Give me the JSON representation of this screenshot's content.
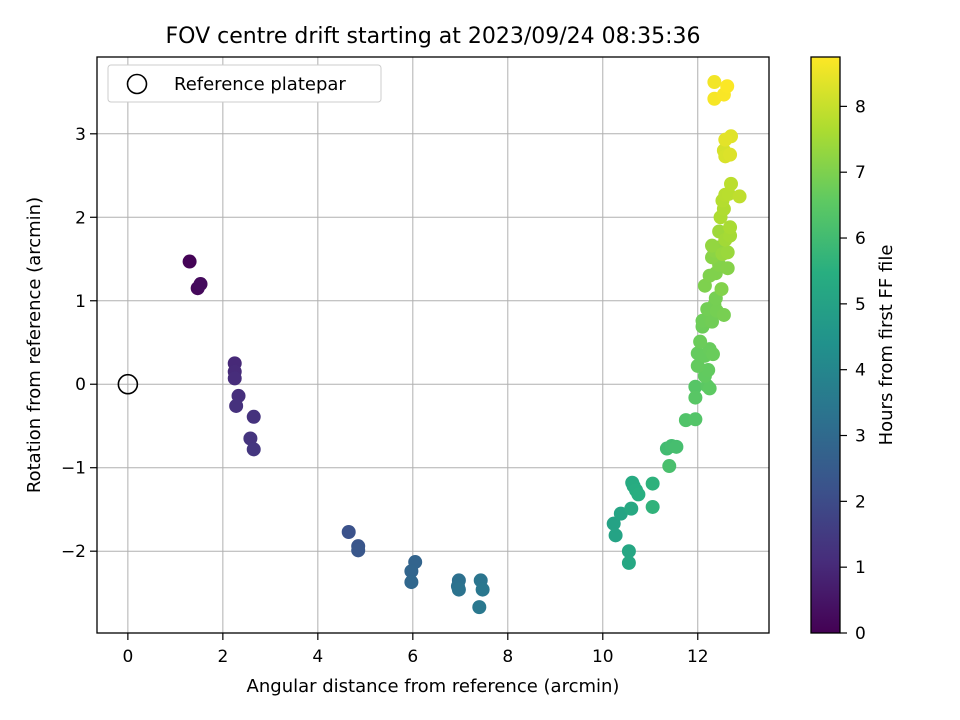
{
  "chart_data": {
    "type": "scatter",
    "title": "FOV centre drift starting at 2023/09/24 08:35:36",
    "xlabel": "Angular distance from reference (arcmin)",
    "ylabel": "Rotation from reference (arcmin)",
    "xlim": [
      -0.65,
      13.5
    ],
    "ylim": [
      -2.98,
      3.92
    ],
    "xticks": [
      0,
      2,
      4,
      6,
      8,
      10,
      12
    ],
    "xtick_labels": [
      "0",
      "2",
      "4",
      "6",
      "8",
      "10",
      "12"
    ],
    "yticks": [
      -2,
      -1,
      0,
      1,
      2,
      3
    ],
    "ytick_labels": [
      "−2",
      "−1",
      "0",
      "1",
      "2",
      "3"
    ],
    "grid": true,
    "legend": {
      "position": "upper-left",
      "entries": [
        "Reference platepar"
      ]
    },
    "reference_point": {
      "x": 0,
      "y": 0
    },
    "colorbar": {
      "label": "Hours from first FF file",
      "colormap": "viridis",
      "range": [
        0,
        8.75
      ],
      "ticks": [
        0,
        1,
        2,
        3,
        4,
        5,
        6,
        7,
        8
      ],
      "tick_labels": [
        "0",
        "1",
        "2",
        "3",
        "4",
        "5",
        "6",
        "7",
        "8"
      ]
    },
    "points": [
      {
        "x": 1.3,
        "y": 1.47,
        "h": 0.05
      },
      {
        "x": 1.47,
        "y": 1.15,
        "h": 0.2
      },
      {
        "x": 1.53,
        "y": 1.2,
        "h": 0.25
      },
      {
        "x": 2.25,
        "y": 0.25,
        "h": 1.0
      },
      {
        "x": 2.25,
        "y": 0.15,
        "h": 1.05
      },
      {
        "x": 2.25,
        "y": 0.07,
        "h": 1.1
      },
      {
        "x": 2.33,
        "y": -0.14,
        "h": 1.15
      },
      {
        "x": 2.28,
        "y": -0.26,
        "h": 1.2
      },
      {
        "x": 2.65,
        "y": -0.39,
        "h": 1.25
      },
      {
        "x": 2.58,
        "y": -0.65,
        "h": 1.3
      },
      {
        "x": 2.65,
        "y": -0.78,
        "h": 1.35
      },
      {
        "x": 4.65,
        "y": -1.77,
        "h": 2.2
      },
      {
        "x": 4.85,
        "y": -1.94,
        "h": 2.3
      },
      {
        "x": 4.85,
        "y": -1.99,
        "h": 2.35
      },
      {
        "x": 6.05,
        "y": -2.13,
        "h": 2.8
      },
      {
        "x": 5.97,
        "y": -2.24,
        "h": 2.85
      },
      {
        "x": 5.97,
        "y": -2.37,
        "h": 2.9
      },
      {
        "x": 6.97,
        "y": -2.35,
        "h": 3.2
      },
      {
        "x": 6.95,
        "y": -2.42,
        "h": 3.25
      },
      {
        "x": 6.97,
        "y": -2.46,
        "h": 3.3
      },
      {
        "x": 7.43,
        "y": -2.35,
        "h": 3.4
      },
      {
        "x": 7.47,
        "y": -2.46,
        "h": 3.45
      },
      {
        "x": 7.4,
        "y": -2.67,
        "h": 3.5
      },
      {
        "x": 10.23,
        "y": -1.67,
        "h": 5.0
      },
      {
        "x": 10.27,
        "y": -1.81,
        "h": 5.05
      },
      {
        "x": 10.38,
        "y": -1.55,
        "h": 5.1
      },
      {
        "x": 10.55,
        "y": -2.0,
        "h": 5.15
      },
      {
        "x": 10.55,
        "y": -2.14,
        "h": 5.2
      },
      {
        "x": 10.6,
        "y": -1.49,
        "h": 5.25
      },
      {
        "x": 10.62,
        "y": -1.18,
        "h": 5.3
      },
      {
        "x": 10.65,
        "y": -1.22,
        "h": 5.35
      },
      {
        "x": 10.7,
        "y": -1.27,
        "h": 5.4
      },
      {
        "x": 10.75,
        "y": -1.32,
        "h": 5.45
      },
      {
        "x": 11.05,
        "y": -1.19,
        "h": 5.6
      },
      {
        "x": 11.05,
        "y": -1.47,
        "h": 5.65
      },
      {
        "x": 11.35,
        "y": -0.77,
        "h": 6.0
      },
      {
        "x": 11.45,
        "y": -0.74,
        "h": 6.05
      },
      {
        "x": 11.55,
        "y": -0.75,
        "h": 6.1
      },
      {
        "x": 11.4,
        "y": -0.98,
        "h": 6.15
      },
      {
        "x": 11.75,
        "y": -0.43,
        "h": 6.3
      },
      {
        "x": 11.95,
        "y": -0.42,
        "h": 6.35
      },
      {
        "x": 11.95,
        "y": -0.03,
        "h": 6.4
      },
      {
        "x": 11.95,
        "y": -0.16,
        "h": 6.45
      },
      {
        "x": 12.2,
        "y": -0.02,
        "h": 6.5
      },
      {
        "x": 12.25,
        "y": -0.05,
        "h": 6.55
      },
      {
        "x": 12.15,
        "y": 0.1,
        "h": 6.6
      },
      {
        "x": 12.22,
        "y": 0.17,
        "h": 6.62
      },
      {
        "x": 12.0,
        "y": 0.22,
        "h": 6.64
      },
      {
        "x": 12.0,
        "y": 0.37,
        "h": 6.66
      },
      {
        "x": 12.15,
        "y": 0.34,
        "h": 6.68
      },
      {
        "x": 12.25,
        "y": 0.42,
        "h": 6.7
      },
      {
        "x": 12.32,
        "y": 0.36,
        "h": 6.72
      },
      {
        "x": 12.05,
        "y": 0.51,
        "h": 6.74
      },
      {
        "x": 12.1,
        "y": 0.69,
        "h": 6.76
      },
      {
        "x": 12.1,
        "y": 0.76,
        "h": 6.78
      },
      {
        "x": 12.25,
        "y": 0.8,
        "h": 6.8
      },
      {
        "x": 12.3,
        "y": 0.75,
        "h": 6.82
      },
      {
        "x": 12.2,
        "y": 0.9,
        "h": 6.84
      },
      {
        "x": 12.35,
        "y": 0.95,
        "h": 6.86
      },
      {
        "x": 12.4,
        "y": 0.88,
        "h": 6.88
      },
      {
        "x": 12.38,
        "y": 1.03,
        "h": 6.9
      },
      {
        "x": 12.55,
        "y": 0.83,
        "h": 6.92
      },
      {
        "x": 12.15,
        "y": 1.18,
        "h": 7.0
      },
      {
        "x": 12.25,
        "y": 1.3,
        "h": 7.02
      },
      {
        "x": 12.38,
        "y": 1.33,
        "h": 7.04
      },
      {
        "x": 12.5,
        "y": 1.14,
        "h": 7.06
      },
      {
        "x": 12.45,
        "y": 1.43,
        "h": 7.08
      },
      {
        "x": 12.63,
        "y": 1.39,
        "h": 7.1
      },
      {
        "x": 12.3,
        "y": 1.52,
        "h": 7.15
      },
      {
        "x": 12.35,
        "y": 1.6,
        "h": 7.2
      },
      {
        "x": 12.45,
        "y": 1.64,
        "h": 7.25
      },
      {
        "x": 12.3,
        "y": 1.66,
        "h": 7.3
      },
      {
        "x": 12.52,
        "y": 1.56,
        "h": 7.35
      },
      {
        "x": 12.63,
        "y": 1.58,
        "h": 7.4
      },
      {
        "x": 12.45,
        "y": 1.83,
        "h": 7.45
      },
      {
        "x": 12.58,
        "y": 1.73,
        "h": 7.5
      },
      {
        "x": 12.68,
        "y": 1.78,
        "h": 7.55
      },
      {
        "x": 12.68,
        "y": 1.88,
        "h": 7.6
      },
      {
        "x": 12.48,
        "y": 2.0,
        "h": 7.65
      },
      {
        "x": 12.55,
        "y": 2.1,
        "h": 7.7
      },
      {
        "x": 12.52,
        "y": 2.2,
        "h": 7.75
      },
      {
        "x": 12.58,
        "y": 2.27,
        "h": 7.8
      },
      {
        "x": 12.65,
        "y": 2.28,
        "h": 7.82
      },
      {
        "x": 12.7,
        "y": 2.4,
        "h": 7.85
      },
      {
        "x": 12.88,
        "y": 2.25,
        "h": 7.9
      },
      {
        "x": 12.55,
        "y": 2.8,
        "h": 8.2
      },
      {
        "x": 12.58,
        "y": 2.73,
        "h": 8.25
      },
      {
        "x": 12.68,
        "y": 2.75,
        "h": 8.3
      },
      {
        "x": 12.7,
        "y": 2.97,
        "h": 8.35
      },
      {
        "x": 12.58,
        "y": 2.93,
        "h": 8.4
      },
      {
        "x": 12.35,
        "y": 3.62,
        "h": 8.6
      },
      {
        "x": 12.35,
        "y": 3.42,
        "h": 8.65
      },
      {
        "x": 12.55,
        "y": 3.47,
        "h": 8.7
      },
      {
        "x": 12.62,
        "y": 3.57,
        "h": 8.72
      }
    ]
  }
}
